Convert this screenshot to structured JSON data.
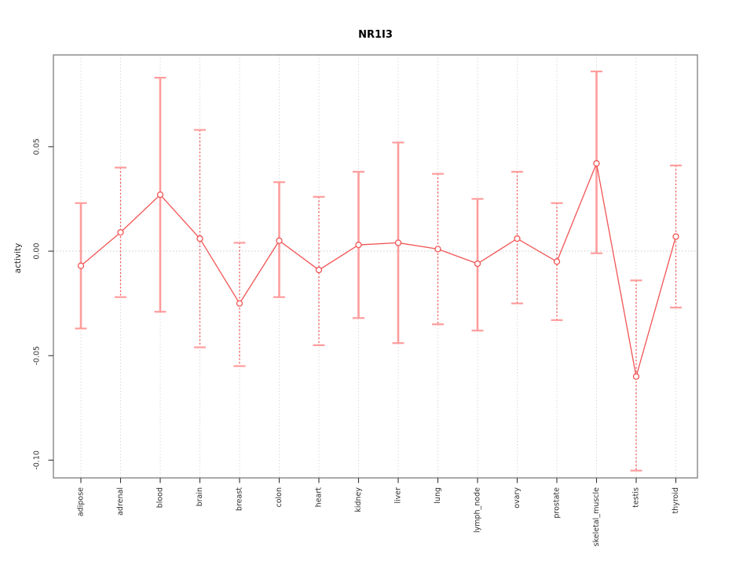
{
  "figure": {
    "title": "NR1I3"
  },
  "chart_data": {
    "type": "line",
    "subtype": "points-with-error-bars",
    "title": "NR1I3",
    "xlabel": "",
    "ylabel": "activity",
    "categories": [
      "adipose",
      "adrenal",
      "blood",
      "brain",
      "breast",
      "colon",
      "heart",
      "kidney",
      "liver",
      "lung",
      "lymph_node",
      "ovary",
      "prostate",
      "skeletal_muscle",
      "testis",
      "thyroid"
    ],
    "series": [
      {
        "name": "activity",
        "values": [
          -0.007,
          0.009,
          0.027,
          0.006,
          -0.025,
          0.005,
          -0.009,
          0.003,
          0.004,
          0.001,
          -0.006,
          0.006,
          -0.005,
          0.042,
          -0.06,
          0.007
        ],
        "upper": [
          0.023,
          0.04,
          0.083,
          0.058,
          0.004,
          0.033,
          0.026,
          0.038,
          0.052,
          0.037,
          0.025,
          0.038,
          0.023,
          0.086,
          -0.014,
          0.041
        ],
        "lower": [
          -0.037,
          -0.022,
          -0.029,
          -0.046,
          -0.055,
          -0.022,
          -0.045,
          -0.032,
          -0.044,
          -0.035,
          -0.038,
          -0.025,
          -0.033,
          -0.001,
          -0.105,
          -0.027
        ],
        "bar_styles": [
          "solid",
          "dashed",
          "solid",
          "dashed",
          "dashed",
          "solid",
          "dashed",
          "solid",
          "solid",
          "dashed",
          "solid",
          "dashed",
          "dashed",
          "solid",
          "dashed",
          "dashed"
        ]
      }
    ],
    "yticks": {
      "values": [
        0.05,
        0.0,
        -0.05,
        -0.1
      ],
      "labels": [
        "0.05",
        "0.00",
        "-0.05",
        "-0.10"
      ]
    },
    "ylim": [
      -0.1085,
      0.0939
    ],
    "grid": {
      "vertical_dotted_per_category": true,
      "zero_line_dotted": true,
      "horizontal_gridlines": false
    },
    "legend": "none",
    "colors": {
      "point": "#f25454",
      "connect_line": "#f25454",
      "error_bar_solid": "#ff9c9c",
      "error_bar_dashed": "#f25454",
      "error_bar_cap": "#ff9c9c",
      "gridline": "#dadada",
      "zero_line": "#c9c9c9",
      "box": "#7d7d7d",
      "tick": "#333333",
      "tick_text": "#303030",
      "title_text": "#000000"
    }
  }
}
